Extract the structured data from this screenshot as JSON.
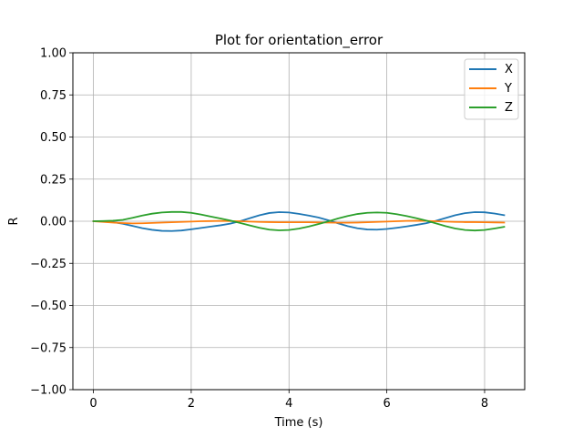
{
  "chart_data": {
    "type": "line",
    "title": "Plot for orientation_error",
    "xlabel": "Time (s)",
    "ylabel": "R",
    "xlim": [
      -0.42,
      8.82
    ],
    "ylim": [
      -1.0,
      1.0
    ],
    "xticks": [
      0,
      2,
      4,
      6,
      8
    ],
    "yticks": [
      -1.0,
      -0.75,
      -0.5,
      -0.25,
      0.0,
      0.25,
      0.5,
      0.75,
      1.0
    ],
    "xtick_labels": [
      "0",
      "2",
      "4",
      "6",
      "8"
    ],
    "ytick_labels": [
      "−1.00",
      "−0.75",
      "−0.50",
      "−0.25",
      "0.00",
      "0.25",
      "0.50",
      "0.75",
      "1.00"
    ],
    "grid": true,
    "legend_position": "top-right",
    "x": [
      0,
      0.2,
      0.4,
      0.6,
      0.8,
      1.0,
      1.2,
      1.4,
      1.6,
      1.8,
      2.0,
      2.2,
      2.4,
      2.6,
      2.8,
      3.0,
      3.2,
      3.4,
      3.6,
      3.8,
      4.0,
      4.2,
      4.4,
      4.6,
      4.8,
      5.0,
      5.2,
      5.4,
      5.6,
      5.8,
      6.0,
      6.2,
      6.4,
      6.6,
      6.8,
      7.0,
      7.2,
      7.4,
      7.6,
      7.8,
      8.0,
      8.2,
      8.4
    ],
    "series": [
      {
        "name": "X",
        "color": "#1f77b4",
        "values": [
          0.0,
          -0.001,
          -0.005,
          -0.015,
          -0.028,
          -0.041,
          -0.051,
          -0.057,
          -0.058,
          -0.055,
          -0.048,
          -0.04,
          -0.032,
          -0.024,
          -0.014,
          0.0,
          0.018,
          0.036,
          0.049,
          0.054,
          0.052,
          0.044,
          0.034,
          0.022,
          0.006,
          -0.012,
          -0.029,
          -0.042,
          -0.049,
          -0.05,
          -0.046,
          -0.039,
          -0.031,
          -0.022,
          -0.012,
          0.002,
          0.019,
          0.036,
          0.048,
          0.054,
          0.053,
          0.046,
          0.036
        ]
      },
      {
        "name": "Y",
        "color": "#ff7f0e",
        "values": [
          0.0,
          -0.004,
          -0.008,
          -0.011,
          -0.013,
          -0.012,
          -0.01,
          -0.008,
          -0.006,
          -0.004,
          -0.002,
          0.0,
          0.001,
          0.002,
          0.001,
          0.0,
          -0.002,
          -0.004,
          -0.005,
          -0.006,
          -0.006,
          -0.006,
          -0.006,
          -0.007,
          -0.008,
          -0.009,
          -0.009,
          -0.008,
          -0.006,
          -0.004,
          -0.002,
          0.0,
          0.002,
          0.003,
          0.002,
          0.0,
          -0.002,
          -0.004,
          -0.005,
          -0.005,
          -0.006,
          -0.007,
          -0.008
        ]
      },
      {
        "name": "Z",
        "color": "#2ca02c",
        "values": [
          0.0,
          0.001,
          0.003,
          0.008,
          0.02,
          0.034,
          0.045,
          0.052,
          0.055,
          0.055,
          0.05,
          0.04,
          0.028,
          0.016,
          0.004,
          -0.01,
          -0.025,
          -0.039,
          -0.05,
          -0.054,
          -0.052,
          -0.044,
          -0.032,
          -0.017,
          -0.001,
          0.016,
          0.031,
          0.043,
          0.05,
          0.052,
          0.05,
          0.042,
          0.031,
          0.018,
          0.004,
          -0.012,
          -0.029,
          -0.043,
          -0.052,
          -0.055,
          -0.052,
          -0.043,
          -0.033
        ]
      }
    ]
  }
}
